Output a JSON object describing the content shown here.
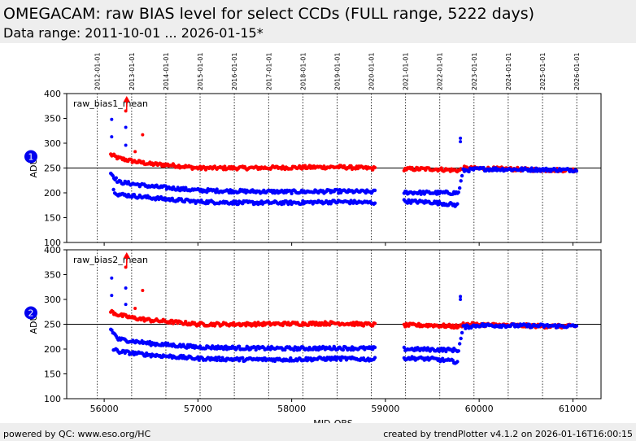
{
  "header": {
    "title": "OMEGACAM: raw BIAS level for select CCDs (FULL range, 5222 days)",
    "subtitle": "Data range: 2011-10-01 ... 2026-01-15*"
  },
  "footer": {
    "left": "powered by QC: www.eso.org/HC",
    "right": "created by trendPlotter v4.1.2 on 2026-01-16T16:00:15"
  },
  "colors": {
    "series_a": "#ff0000",
    "series_b": "#0000ff",
    "marker": "#0000ee"
  },
  "chart_data": {
    "type": "scatter",
    "xlabel": "MJD-OBS",
    "xlim": [
      55600,
      61300
    ],
    "x_ticks": [
      56000,
      57000,
      58000,
      59000,
      60000,
      61000
    ],
    "date_ticks": [
      {
        "mjd": 55927,
        "label": "2012-01-01"
      },
      {
        "mjd": 56293,
        "label": "2013-01-01"
      },
      {
        "mjd": 56658,
        "label": "2014-01-01"
      },
      {
        "mjd": 57023,
        "label": "2015-01-01"
      },
      {
        "mjd": 57388,
        "label": "2016-01-01"
      },
      {
        "mjd": 57754,
        "label": "2017-01-01"
      },
      {
        "mjd": 58119,
        "label": "2018-01-01"
      },
      {
        "mjd": 58484,
        "label": "2019-01-01"
      },
      {
        "mjd": 58849,
        "label": "2020-01-01"
      },
      {
        "mjd": 59215,
        "label": "2021-01-01"
      },
      {
        "mjd": 59580,
        "label": "2022-01-01"
      },
      {
        "mjd": 59945,
        "label": "2023-01-01"
      },
      {
        "mjd": 60310,
        "label": "2024-01-01"
      },
      {
        "mjd": 60676,
        "label": "2025-01-01"
      },
      {
        "mjd": 61041,
        "label": "2026-01-01"
      }
    ],
    "panels": [
      {
        "marker_label": "1",
        "label": "raw_bias1_mean",
        "ylabel": "ADU",
        "ylim": [
          100,
          400
        ],
        "y_ticks": [
          100,
          150,
          200,
          250,
          300,
          350,
          400
        ],
        "reference_line": 250,
        "series": [
          {
            "color": "red",
            "values": [
              [
                56070,
                277
              ],
              [
                56150,
                270
              ],
              [
                56300,
                264
              ],
              [
                56500,
                258
              ],
              [
                56700,
                256
              ],
              [
                57000,
                250
              ],
              [
                57500,
                250
              ],
              [
                58000,
                251
              ],
              [
                58500,
                252
              ],
              [
                58900,
                249
              ],
              [
                59200,
                248
              ],
              [
                59500,
                248
              ],
              [
                59790,
                245
              ],
              [
                59830,
                250
              ],
              [
                60000,
                249
              ],
              [
                60300,
                248
              ],
              [
                60700,
                246
              ],
              [
                61050,
                246
              ]
            ]
          },
          {
            "color": "blue",
            "values": [
              [
                56070,
                240
              ],
              [
                56150,
                222
              ],
              [
                56500,
                213
              ],
              [
                57000,
                205
              ],
              [
                57500,
                203
              ],
              [
                58000,
                202
              ],
              [
                58500,
                203
              ],
              [
                58900,
                202
              ],
              [
                59200,
                201
              ],
              [
                59500,
                200
              ],
              [
                59780,
                200
              ],
              [
                59830,
                245
              ],
              [
                60000,
                248
              ],
              [
                60500,
                247
              ],
              [
                61050,
                246
              ]
            ]
          },
          {
            "color": "blue",
            "values": [
              [
                56100,
                205
              ],
              [
                56150,
                197
              ],
              [
                56500,
                190
              ],
              [
                57000,
                182
              ],
              [
                57500,
                180
              ],
              [
                58000,
                180
              ],
              [
                58500,
                182
              ],
              [
                58900,
                180
              ],
              [
                59200,
                183
              ],
              [
                59500,
                181
              ],
              [
                59780,
                175
              ]
            ]
          }
        ],
        "outliers": [
          {
            "x": 56240,
            "y": 385,
            "color": "red"
          },
          {
            "x": 56230,
            "y": 365,
            "color": "red"
          },
          {
            "x": 56410,
            "y": 317,
            "color": "red"
          },
          {
            "x": 56080,
            "y": 348,
            "color": "blue"
          },
          {
            "x": 56080,
            "y": 313,
            "color": "blue"
          },
          {
            "x": 56230,
            "y": 332,
            "color": "blue"
          },
          {
            "x": 56230,
            "y": 296,
            "color": "blue"
          },
          {
            "x": 56330,
            "y": 283,
            "color": "red"
          },
          {
            "x": 59800,
            "y": 310,
            "color": "blue"
          },
          {
            "x": 59800,
            "y": 303,
            "color": "blue"
          }
        ]
      },
      {
        "marker_label": "2",
        "label": "raw_bias2_mean",
        "ylabel": "ADU",
        "ylim": [
          100,
          400
        ],
        "y_ticks": [
          100,
          150,
          200,
          250,
          300,
          350,
          400
        ],
        "reference_line": 250,
        "series": [
          {
            "color": "red",
            "values": [
              [
                56070,
                276
              ],
              [
                56150,
                269
              ],
              [
                56300,
                263
              ],
              [
                56500,
                258
              ],
              [
                56700,
                255
              ],
              [
                57000,
                250
              ],
              [
                57500,
                250
              ],
              [
                58000,
                251
              ],
              [
                58500,
                252
              ],
              [
                58900,
                249
              ],
              [
                59200,
                248
              ],
              [
                59500,
                248
              ],
              [
                59790,
                245
              ],
              [
                59830,
                250
              ],
              [
                60000,
                249
              ],
              [
                60300,
                248
              ],
              [
                60700,
                246
              ],
              [
                61050,
                246
              ]
            ]
          },
          {
            "color": "blue",
            "values": [
              [
                56070,
                240
              ],
              [
                56150,
                220
              ],
              [
                56500,
                211
              ],
              [
                57000,
                204
              ],
              [
                57500,
                202
              ],
              [
                58000,
                201
              ],
              [
                58500,
                202
              ],
              [
                58900,
                201
              ],
              [
                59200,
                200
              ],
              [
                59500,
                199
              ],
              [
                59780,
                198
              ],
              [
                59830,
                244
              ],
              [
                60000,
                248
              ],
              [
                60500,
                247
              ],
              [
                61050,
                246
              ]
            ]
          },
          {
            "color": "blue",
            "values": [
              [
                56100,
                200
              ],
              [
                56150,
                195
              ],
              [
                56500,
                188
              ],
              [
                57000,
                181
              ],
              [
                57500,
                179
              ],
              [
                58000,
                179
              ],
              [
                58500,
                181
              ],
              [
                58900,
                179
              ],
              [
                59200,
                182
              ],
              [
                59500,
                180
              ],
              [
                59780,
                174
              ]
            ]
          }
        ],
        "outliers": [
          {
            "x": 56240,
            "y": 385,
            "color": "red"
          },
          {
            "x": 56230,
            "y": 365,
            "color": "red"
          },
          {
            "x": 56410,
            "y": 318,
            "color": "red"
          },
          {
            "x": 56080,
            "y": 343,
            "color": "blue"
          },
          {
            "x": 56080,
            "y": 308,
            "color": "blue"
          },
          {
            "x": 56230,
            "y": 323,
            "color": "blue"
          },
          {
            "x": 56230,
            "y": 290,
            "color": "blue"
          },
          {
            "x": 56330,
            "y": 282,
            "color": "red"
          },
          {
            "x": 59800,
            "y": 306,
            "color": "blue"
          },
          {
            "x": 59800,
            "y": 300,
            "color": "blue"
          }
        ]
      }
    ]
  }
}
